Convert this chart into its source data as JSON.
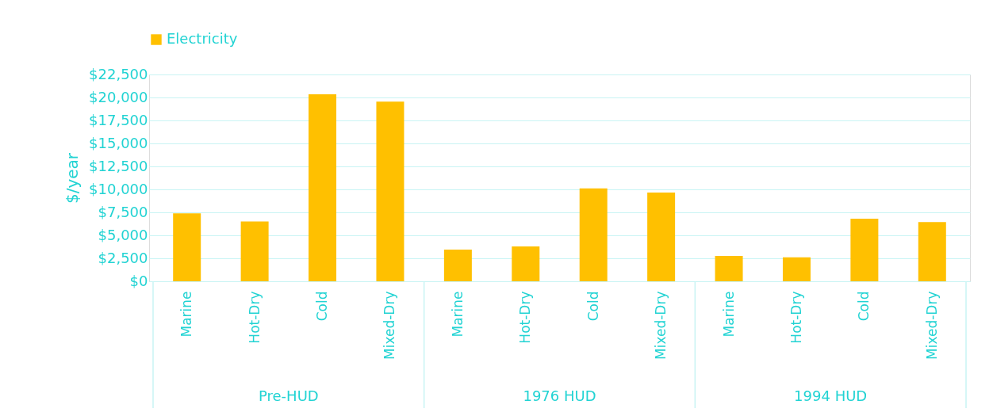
{
  "chart_data": {
    "type": "bar",
    "ylabel": "$/year",
    "categories": [
      "Marine",
      "Hot-Dry",
      "Cold",
      "Mixed-Dry",
      "Marine",
      "Hot-Dry",
      "Cold",
      "Mixed-Dry",
      "Marine",
      "Hot-Dry",
      "Cold",
      "Mixed-Dry"
    ],
    "series": [
      {
        "name": "Electricity",
        "color": "#ffc000",
        "values": [
          7400,
          6500,
          20350,
          19550,
          3450,
          3800,
          10100,
          9650,
          2750,
          2600,
          6800,
          6450
        ]
      }
    ],
    "ylim": [
      0,
      22500
    ],
    "yticks": [
      {
        "value": 0,
        "label": "$0"
      },
      {
        "value": 2500,
        "label": "$2,500"
      },
      {
        "value": 5000,
        "label": "$5,000"
      },
      {
        "value": 7500,
        "label": "$7,500"
      },
      {
        "value": 10000,
        "label": "$10,000"
      },
      {
        "value": 12500,
        "label": "$12,500"
      },
      {
        "value": 15000,
        "label": "$15,000"
      },
      {
        "value": 17500,
        "label": "$17,500"
      },
      {
        "value": 20000,
        "label": "$20,000"
      },
      {
        "value": 22500,
        "label": "$22,500"
      }
    ],
    "annotations": [
      "Pre-HUD",
      "1976 HUD",
      "1994 HUD"
    ],
    "grid": "y",
    "legend": "top"
  }
}
